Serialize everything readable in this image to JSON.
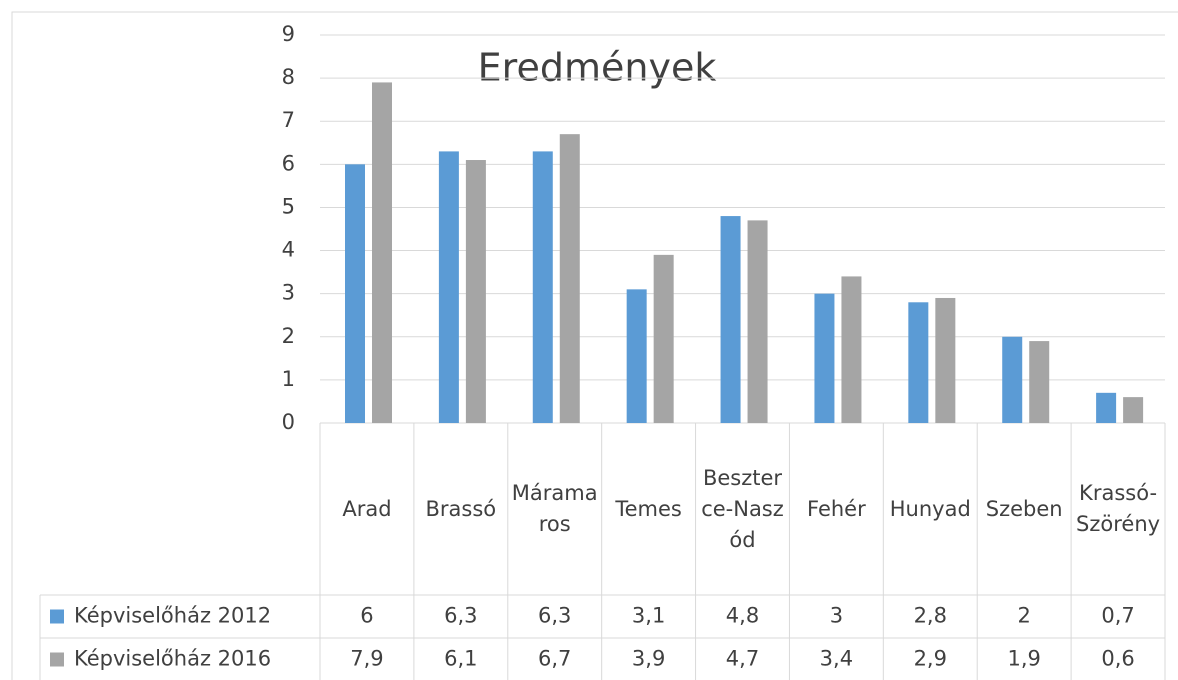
{
  "chart_data": {
    "type": "bar",
    "title": "Eredmények",
    "categories": [
      "Arad",
      "Brassó",
      "Máramaros",
      "Temes",
      "Beszterce-Naszód",
      "Fehér",
      "Hunyad",
      "Szeben",
      "Krassó-Szörény"
    ],
    "series": [
      {
        "name": "Képviselőház 2012",
        "color": "#5b9bd5",
        "values": [
          6,
          6.3,
          6.3,
          3.1,
          4.8,
          3,
          2.8,
          2,
          0.7
        ],
        "value_labels": [
          "6",
          "6,3",
          "6,3",
          "3,1",
          "4,8",
          "3",
          "2,8",
          "2",
          "0,7"
        ]
      },
      {
        "name": "Képviselőház 2016",
        "color": "#a5a5a5",
        "values": [
          7.9,
          6.1,
          6.7,
          3.9,
          4.7,
          3.4,
          2.9,
          1.9,
          0.6
        ],
        "value_labels": [
          "7,9",
          "6,1",
          "6,7",
          "3,9",
          "4,7",
          "3,4",
          "2,9",
          "1,9",
          "0,6"
        ]
      }
    ],
    "ylim": [
      0,
      9
    ],
    "yticks": [
      0,
      1,
      2,
      3,
      4,
      5,
      6,
      7,
      8,
      9
    ],
    "grid": true
  }
}
